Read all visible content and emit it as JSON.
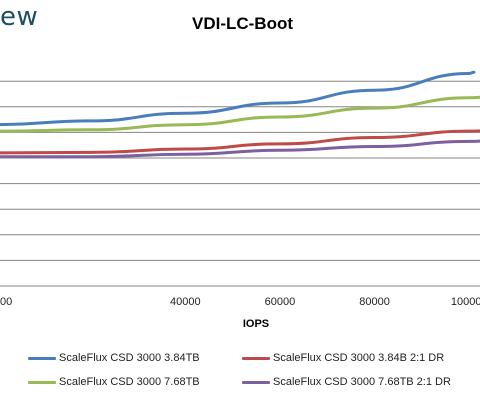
{
  "brand": "ew",
  "chart_data": {
    "type": "line",
    "title": "VDI-LC-Boot",
    "xlabel": "IOPS",
    "ylabel": "",
    "xlim": [
      0,
      112000
    ],
    "ylim": [
      0,
      10
    ],
    "x_ticks": [
      0,
      40000,
      60000,
      80000,
      100000
    ],
    "x_tick_labels": [
      "00",
      "40000",
      "60000",
      "80000",
      "100000"
    ],
    "grid": true,
    "legend_position": "bottom",
    "series": [
      {
        "name": "ScaleFlux CSD 3000 3.84TB",
        "color": "#4a7ebb",
        "x": [
          0,
          20000,
          40000,
          60000,
          80000,
          100000,
          101000
        ],
        "y": [
          6.3,
          6.45,
          6.75,
          7.15,
          7.65,
          8.3,
          8.35
        ]
      },
      {
        "name": "ScaleFlux CSD 3000 3.84B 2:1 DR",
        "color": "#be4b48",
        "x": [
          0,
          20000,
          40000,
          60000,
          80000,
          100000,
          112000
        ],
        "y": [
          5.2,
          5.22,
          5.35,
          5.55,
          5.8,
          6.05,
          6.2
        ]
      },
      {
        "name": "ScaleFlux CSD 3000 7.68TB",
        "color": "#98b954",
        "x": [
          0,
          20000,
          40000,
          60000,
          80000,
          100000,
          110000
        ],
        "y": [
          6.05,
          6.1,
          6.3,
          6.6,
          6.95,
          7.35,
          7.55
        ]
      },
      {
        "name": "ScaleFlux CSD 3000 7.68TB 2:1 DR",
        "color": "#7d60a0",
        "x": [
          0,
          20000,
          40000,
          60000,
          80000,
          100000,
          112000
        ],
        "y": [
          5.05,
          5.05,
          5.15,
          5.3,
          5.45,
          5.65,
          5.8
        ]
      }
    ]
  }
}
